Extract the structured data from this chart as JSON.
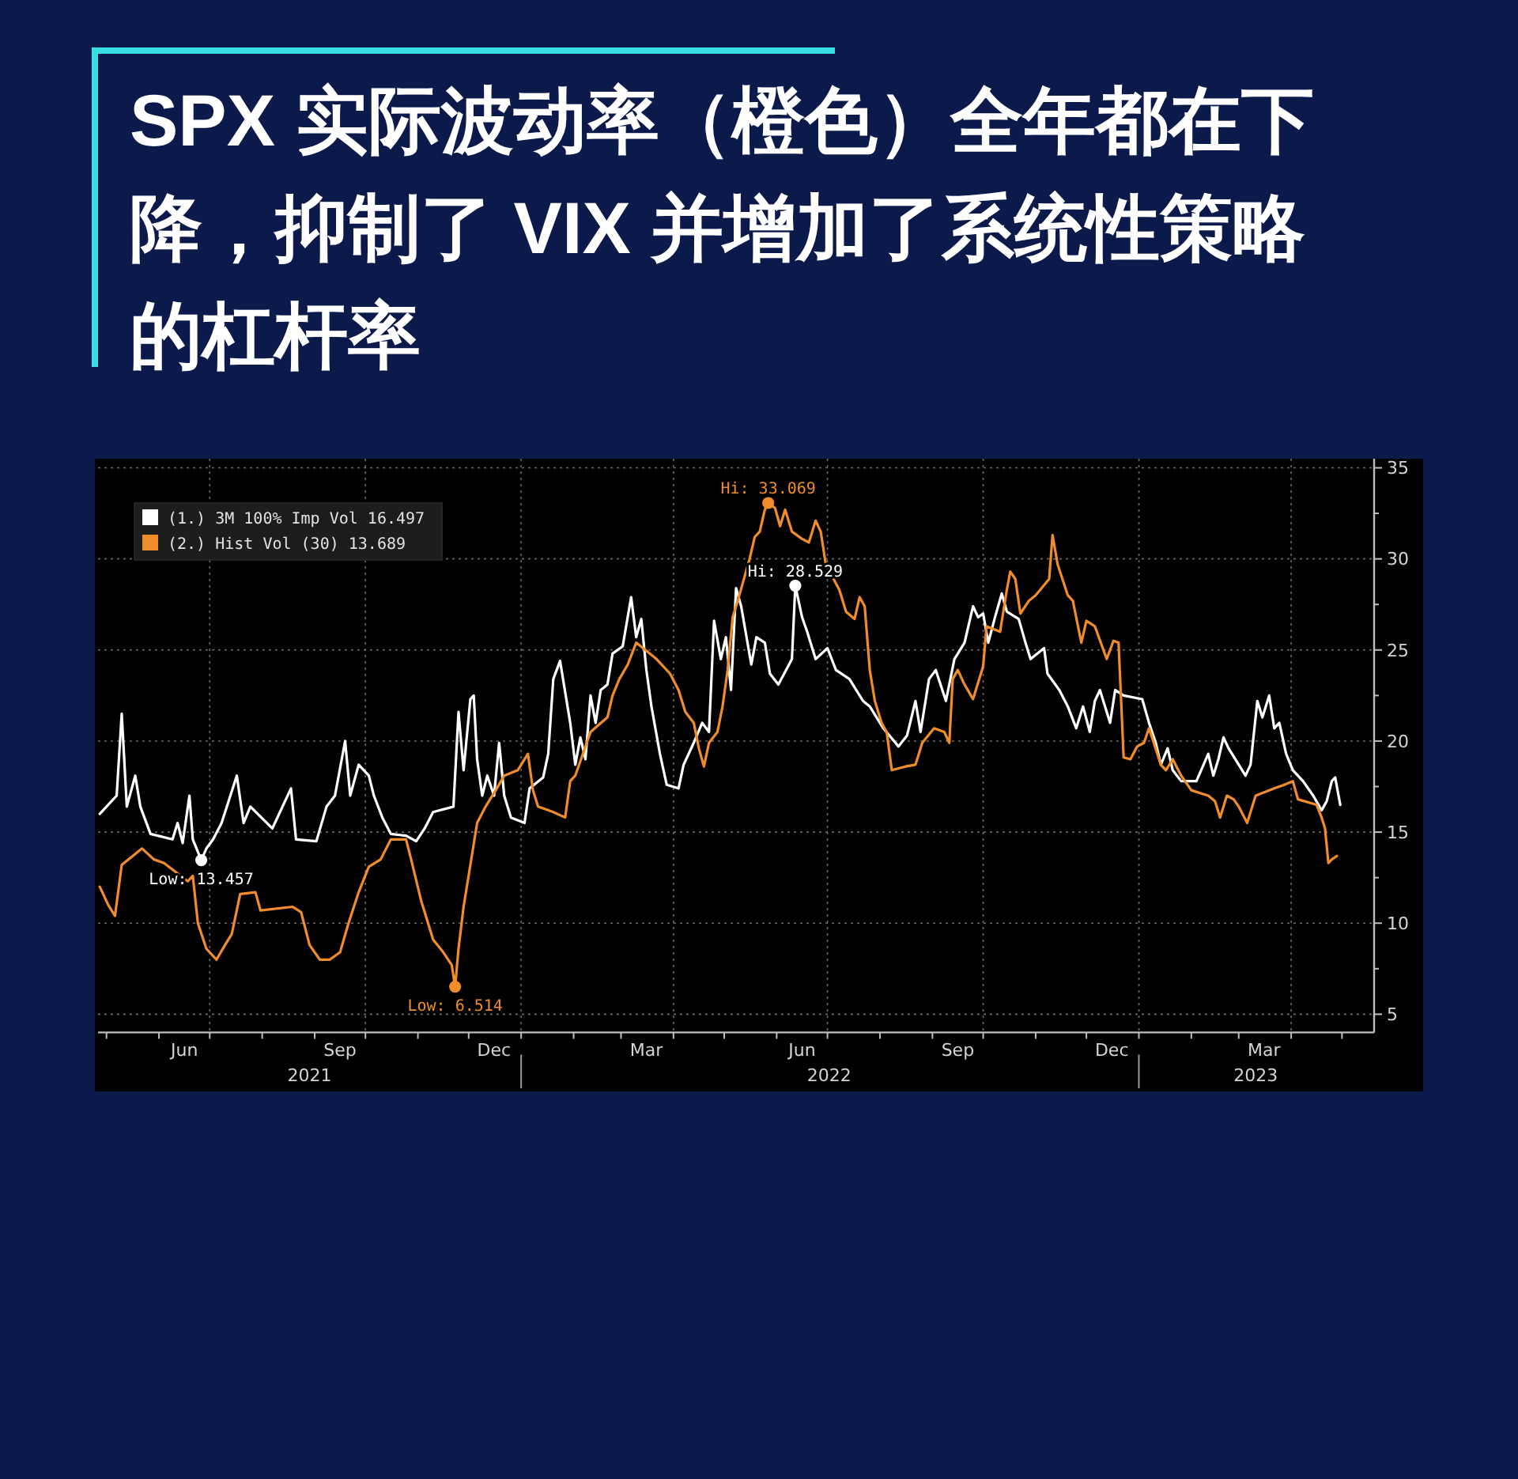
{
  "chart_data": {
    "type": "line",
    "title": "SPX 实际波动率（橙色）全年都在下降，抑制了 VIX 并增加了系统性策略的杠杆率",
    "series": [
      {
        "name": "(1.) 3M 100% Imp Vol 16.497",
        "color": "#ffffff",
        "x": [
          "2021-04-27",
          "2021-05-07",
          "2021-05-10",
          "2021-05-13",
          "2021-05-18",
          "2021-05-21",
          "2021-05-27",
          "2021-06-09",
          "2021-06-12",
          "2021-06-15",
          "2021-06-19",
          "2021-06-21",
          "2021-06-26",
          "2021-06-29",
          "2021-07-03",
          "2021-07-08",
          "2021-07-17",
          "2021-07-21",
          "2021-07-25",
          "2021-08-07",
          "2021-08-18",
          "2021-08-21",
          "2021-09-02",
          "2021-09-08",
          "2021-09-13",
          "2021-09-19",
          "2021-09-22",
          "2021-09-27",
          "2021-10-03",
          "2021-10-06",
          "2021-10-11",
          "2021-10-16",
          "2021-10-25",
          "2021-10-31",
          "2021-11-05",
          "2021-11-10",
          "2021-11-22",
          "2021-11-25",
          "2021-11-28",
          "2021-12-02",
          "2021-12-04",
          "2021-12-06",
          "2021-12-09",
          "2021-12-12",
          "2021-12-16",
          "2021-12-19",
          "2021-12-22",
          "2021-12-26",
          "2022-01-03",
          "2022-01-06",
          "2022-01-14",
          "2022-01-17",
          "2022-01-20",
          "2022-01-24",
          "2022-01-30",
          "2022-02-02",
          "2022-02-05",
          "2022-02-08",
          "2022-02-11",
          "2022-02-14",
          "2022-02-17",
          "2022-02-21",
          "2022-02-24",
          "2022-03-02",
          "2022-03-07",
          "2022-03-10",
          "2022-03-13",
          "2022-03-16",
          "2022-03-19",
          "2022-03-24",
          "2022-03-28",
          "2022-04-04",
          "2022-04-07",
          "2022-04-13",
          "2022-04-18",
          "2022-04-22",
          "2022-04-25",
          "2022-04-29",
          "2022-05-02",
          "2022-05-05",
          "2022-05-08",
          "2022-05-11",
          "2022-05-17",
          "2022-05-20",
          "2022-05-25",
          "2022-05-28",
          "2022-06-02",
          "2022-06-10",
          "2022-06-12",
          "2022-06-16",
          "2022-06-19",
          "2022-06-24",
          "2022-07-01",
          "2022-07-06",
          "2022-07-14",
          "2022-07-22",
          "2022-07-26",
          "2022-08-03",
          "2022-08-12",
          "2022-08-17",
          "2022-08-22",
          "2022-08-25",
          "2022-08-30",
          "2022-09-03",
          "2022-09-09",
          "2022-09-14",
          "2022-09-20",
          "2022-09-25",
          "2022-09-28",
          "2022-10-01",
          "2022-10-04",
          "2022-10-08",
          "2022-10-12",
          "2022-10-15",
          "2022-10-22",
          "2022-10-26",
          "2022-10-29",
          "2022-11-06",
          "2022-11-08",
          "2022-11-15",
          "2022-11-20",
          "2022-11-25",
          "2022-11-29",
          "2022-12-03",
          "2022-12-06",
          "2022-12-09",
          "2022-12-15",
          "2022-12-18",
          "2022-12-23",
          "2023-01-03",
          "2023-01-07",
          "2023-01-11",
          "2023-01-14",
          "2023-01-18",
          "2023-01-21",
          "2023-01-26",
          "2023-02-04",
          "2023-02-11",
          "2023-02-14",
          "2023-02-17",
          "2023-02-20",
          "2023-02-23",
          "2023-03-05",
          "2023-03-08",
          "2023-03-12",
          "2023-03-15",
          "2023-03-19",
          "2023-03-22",
          "2023-03-25",
          "2023-03-29",
          "2023-04-02",
          "2023-04-08",
          "2023-04-14",
          "2023-04-19",
          "2023-04-22",
          "2023-04-25",
          "2023-04-27",
          "2023-04-30"
        ],
        "values": [
          16.0,
          17.0,
          21.5,
          16.4,
          18.1,
          16.4,
          14.9,
          14.6,
          15.5,
          14.4,
          17.0,
          14.6,
          13.457,
          14.1,
          14.6,
          15.5,
          18.1,
          15.5,
          16.4,
          15.2,
          17.4,
          14.6,
          14.5,
          16.4,
          17.0,
          20.0,
          17.0,
          18.7,
          18.1,
          17.0,
          15.8,
          14.9,
          14.8,
          14.5,
          15.2,
          16.1,
          16.4,
          21.6,
          18.4,
          22.3,
          22.5,
          19.0,
          17.0,
          18.1,
          17.0,
          19.9,
          17.0,
          15.8,
          15.5,
          17.4,
          18.0,
          19.3,
          23.4,
          24.4,
          21.0,
          18.7,
          20.2,
          19.0,
          22.5,
          21.0,
          22.8,
          23.1,
          24.8,
          25.2,
          27.9,
          25.7,
          26.7,
          23.9,
          21.9,
          19.3,
          17.6,
          17.4,
          18.7,
          19.9,
          21.0,
          20.5,
          26.6,
          24.5,
          25.7,
          22.8,
          28.4,
          27.4,
          24.2,
          25.7,
          25.4,
          23.7,
          23.1,
          24.5,
          28.529,
          26.8,
          26.0,
          24.5,
          25.1,
          23.9,
          23.4,
          22.2,
          21.9,
          20.7,
          19.7,
          20.3,
          22.2,
          20.5,
          23.4,
          23.9,
          22.2,
          24.5,
          25.4,
          27.4,
          26.8,
          27.0,
          25.4,
          26.8,
          28.1,
          27.1,
          26.7,
          25.4,
          24.5,
          25.1,
          23.7,
          22.8,
          21.9,
          20.7,
          21.9,
          20.5,
          22.2,
          22.8,
          21.0,
          22.8,
          22.5,
          22.3,
          21.0,
          19.9,
          18.7,
          19.6,
          18.4,
          17.8,
          17.8,
          19.3,
          18.1,
          19.0,
          20.2,
          19.6,
          18.1,
          18.7,
          22.2,
          21.3,
          22.5,
          20.7,
          21.0,
          19.3,
          18.4,
          17.8,
          17.0,
          16.2,
          16.7,
          17.8,
          18.0,
          16.497
        ]
      },
      {
        "name": "(2.) Hist Vol (30) 13.689",
        "color": "#f08c2a",
        "x": [
          "2021-04-27",
          "2021-05-02",
          "2021-05-06",
          "2021-05-10",
          "2021-05-22",
          "2021-05-29",
          "2021-06-04",
          "2021-06-18",
          "2021-06-21",
          "2021-06-24",
          "2021-06-29",
          "2021-07-05",
          "2021-07-10",
          "2021-07-14",
          "2021-07-19",
          "2021-07-28",
          "2021-07-31",
          "2021-08-19",
          "2021-08-24",
          "2021-08-29",
          "2021-09-04",
          "2021-09-10",
          "2021-09-16",
          "2021-09-21",
          "2021-09-27",
          "2021-10-03",
          "2021-10-10",
          "2021-10-16",
          "2021-10-25",
          "2021-10-28",
          "2021-11-03",
          "2021-11-10",
          "2021-11-16",
          "2021-11-21",
          "2021-11-23",
          "2021-11-25",
          "2021-11-28",
          "2021-12-02",
          "2021-12-06",
          "2021-12-11",
          "2021-12-17",
          "2021-12-22",
          "2021-12-30",
          "2022-01-05",
          "2022-01-08",
          "2022-01-11",
          "2022-01-20",
          "2022-01-27",
          "2022-01-30",
          "2022-02-02",
          "2022-02-11",
          "2022-02-21",
          "2022-02-24",
          "2022-02-28",
          "2022-03-05",
          "2022-03-10",
          "2022-03-22",
          "2022-03-30",
          "2022-04-04",
          "2022-04-08",
          "2022-04-13",
          "2022-04-16",
          "2022-04-19",
          "2022-04-22",
          "2022-04-27",
          "2022-04-30",
          "2022-05-03",
          "2022-05-06",
          "2022-05-09",
          "2022-05-16",
          "2022-05-19",
          "2022-05-22",
          "2022-05-25",
          "2022-05-27",
          "2022-05-31",
          "2022-06-03",
          "2022-06-06",
          "2022-06-10",
          "2022-06-16",
          "2022-06-20",
          "2022-06-24",
          "2022-06-27",
          "2022-06-30",
          "2022-07-08",
          "2022-07-12",
          "2022-07-17",
          "2022-07-20",
          "2022-07-23",
          "2022-07-26",
          "2022-07-29",
          "2022-08-02",
          "2022-08-05",
          "2022-08-08",
          "2022-08-16",
          "2022-08-22",
          "2022-08-26",
          "2022-09-02",
          "2022-09-08",
          "2022-09-11",
          "2022-09-13",
          "2022-09-16",
          "2022-09-20",
          "2022-09-25",
          "2022-10-01",
          "2022-10-03",
          "2022-10-11",
          "2022-10-15",
          "2022-10-17",
          "2022-10-20",
          "2022-10-23",
          "2022-10-28",
          "2022-11-01",
          "2022-11-09",
          "2022-11-11",
          "2022-11-14",
          "2022-11-20",
          "2022-11-23",
          "2022-11-28",
          "2022-12-01",
          "2022-12-06",
          "2022-12-13",
          "2022-12-17",
          "2022-12-20",
          "2022-12-23",
          "2022-12-27",
          "2022-12-31",
          "2023-01-04",
          "2023-01-07",
          "2023-01-14",
          "2023-01-17",
          "2023-01-21",
          "2023-01-26",
          "2023-02-01",
          "2023-02-11",
          "2023-02-15",
          "2023-02-18",
          "2023-02-22",
          "2023-02-26",
          "2023-03-01",
          "2023-03-06",
          "2023-03-11",
          "2023-03-22",
          "2023-03-28",
          "2023-04-02",
          "2023-04-05",
          "2023-04-16",
          "2023-04-19",
          "2023-04-21",
          "2023-04-23",
          "2023-04-25",
          "2023-04-28"
        ],
        "values": [
          12.0,
          11.0,
          10.4,
          13.2,
          14.1,
          13.5,
          13.3,
          12.3,
          12.6,
          10.0,
          8.6,
          8.0,
          8.8,
          9.4,
          11.6,
          11.7,
          10.7,
          10.9,
          10.6,
          8.8,
          8.0,
          8.0,
          8.4,
          10.0,
          11.7,
          13.1,
          13.5,
          14.6,
          14.6,
          13.5,
          11.2,
          9.1,
          8.4,
          7.7,
          6.514,
          8.6,
          10.9,
          13.2,
          15.5,
          16.4,
          17.3,
          18.1,
          18.4,
          19.3,
          17.3,
          16.4,
          16.1,
          15.8,
          17.8,
          18.1,
          20.5,
          21.3,
          22.5,
          23.4,
          24.2,
          25.4,
          24.5,
          23.7,
          22.8,
          21.6,
          21.0,
          19.6,
          18.6,
          19.9,
          20.5,
          21.9,
          23.9,
          26.8,
          27.7,
          30.0,
          31.2,
          31.5,
          32.7,
          33.069,
          32.8,
          31.8,
          32.7,
          31.5,
          31.1,
          30.9,
          32.1,
          31.5,
          29.7,
          28.3,
          27.1,
          26.7,
          27.9,
          27.4,
          23.9,
          22.2,
          21.0,
          20.5,
          18.4,
          18.6,
          18.7,
          19.9,
          20.7,
          20.5,
          19.9,
          23.4,
          23.9,
          23.1,
          22.3,
          24.1,
          26.3,
          26.0,
          28.3,
          29.3,
          28.9,
          27.0,
          27.7,
          28.0,
          28.9,
          31.3,
          29.7,
          28.0,
          27.7,
          25.4,
          26.6,
          26.3,
          24.5,
          25.5,
          25.4,
          19.1,
          19.0,
          19.7,
          19.9,
          20.7,
          18.7,
          18.4,
          19.0,
          18.1,
          17.3,
          17.0,
          16.7,
          15.8,
          17.0,
          16.8,
          16.4,
          15.5,
          17.0,
          17.4,
          17.6,
          17.8,
          16.8,
          16.5,
          15.8,
          15.2,
          13.3,
          13.5,
          13.689
        ]
      }
    ],
    "xlim": [
      "2021-04-26",
      "2023-05-20"
    ],
    "xticks": [
      {
        "value": "2021-05-01",
        "label": null
      },
      {
        "value": "2021-06-01",
        "label": null
      },
      {
        "value": "2021-06-16",
        "label": "Jun"
      },
      {
        "value": "2021-07-01",
        "label": null
      },
      {
        "value": "2021-08-01",
        "label": null
      },
      {
        "value": "2021-09-01",
        "label": null
      },
      {
        "value": "2021-09-16",
        "label": "Sep"
      },
      {
        "value": "2021-10-01",
        "label": null
      },
      {
        "value": "2021-11-01",
        "label": null
      },
      {
        "value": "2021-12-01",
        "label": null
      },
      {
        "value": "2021-12-16",
        "label": "Dec"
      },
      {
        "value": "2022-01-01",
        "label": null
      },
      {
        "value": "2022-02-01",
        "label": null
      },
      {
        "value": "2022-03-01",
        "label": null
      },
      {
        "value": "2022-03-16",
        "label": "Mar"
      },
      {
        "value": "2022-04-01",
        "label": null
      },
      {
        "value": "2022-05-01",
        "label": null
      },
      {
        "value": "2022-06-01",
        "label": null
      },
      {
        "value": "2022-06-16",
        "label": "Jun"
      },
      {
        "value": "2022-07-01",
        "label": null
      },
      {
        "value": "2022-08-01",
        "label": null
      },
      {
        "value": "2022-09-01",
        "label": null
      },
      {
        "value": "2022-09-16",
        "label": "Sep"
      },
      {
        "value": "2022-10-01",
        "label": null
      },
      {
        "value": "2022-11-01",
        "label": null
      },
      {
        "value": "2022-12-01",
        "label": null
      },
      {
        "value": "2022-12-16",
        "label": "Dec"
      },
      {
        "value": "2023-01-01",
        "label": null
      },
      {
        "value": "2023-02-01",
        "label": null
      },
      {
        "value": "2023-03-01",
        "label": null
      },
      {
        "value": "2023-03-16",
        "label": "Mar"
      },
      {
        "value": "2023-04-01",
        "label": null
      },
      {
        "value": "2023-05-01",
        "label": null
      }
    ],
    "x2lim": [
      "2021-04-26",
      "2023-05-20"
    ],
    "x2ticks": [
      {
        "value": "2021-08-29",
        "label": "2021"
      },
      {
        "value": "2022-01-01",
        "label": null
      },
      {
        "value": "2022-07-02",
        "label": "2022"
      },
      {
        "value": "2023-01-01",
        "label": null
      },
      {
        "value": "2023-03-11",
        "label": "2023"
      }
    ],
    "ylim": [
      4,
      35.5
    ],
    "yticks": [
      5,
      {
        "value": 7.5,
        "label": null
      },
      10,
      {
        "value": 12.5,
        "label": null
      },
      15,
      {
        "value": 17.5,
        "label": null
      },
      20,
      {
        "value": 22.5,
        "label": null
      },
      25,
      {
        "value": 27.5,
        "label": null
      },
      30,
      {
        "value": 32.5,
        "label": null
      },
      35
    ],
    "grid": true,
    "legend": "top left",
    "annotations": [
      {
        "text": "Hi: 33.069",
        "x": "2022-05-27",
        "y": 33.069
      },
      {
        "text": "Hi: 28.529",
        "x": "2022-06-12",
        "y": 28.529
      },
      {
        "text": "Low: 13.457",
        "x": "2021-06-26",
        "y": 13.457
      },
      {
        "text": "Low: 6.514",
        "x": "2021-11-23",
        "y": 6.514
      }
    ]
  }
}
